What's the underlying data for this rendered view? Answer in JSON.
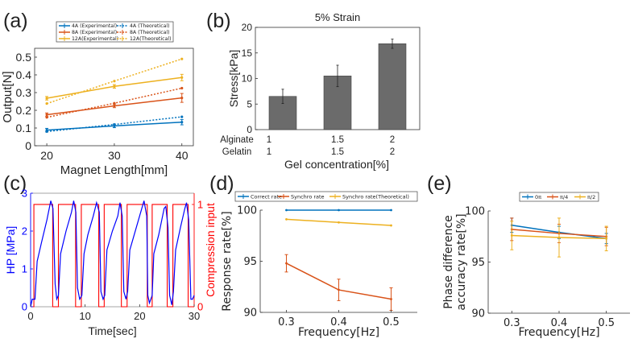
{
  "panel_labels": [
    "(a)",
    "(b)",
    "(c)",
    "(d)",
    "(e)"
  ],
  "chart_data": [
    {
      "id": "a",
      "type": "line",
      "xlabel": "Magnet Length[mm]",
      "ylabel": "Output[N]",
      "x": [
        20,
        30,
        40
      ],
      "xlim": [
        18.2,
        41.7
      ],
      "ylim": [
        0,
        0.55
      ],
      "xticks": [
        20,
        30,
        40
      ],
      "yticks": [
        0,
        0.1,
        0.2,
        0.3,
        0.4,
        0.5
      ],
      "grid": false,
      "legend": "top",
      "series": [
        {
          "name": "4A  (Experimental)",
          "color": "#0072BD",
          "dash": false,
          "values": [
            0.088,
            0.112,
            0.133
          ],
          "err": [
            0.01,
            0.01,
            0.015
          ]
        },
        {
          "name": "4A  (Theoretical)",
          "color": "#0072BD",
          "dash": true,
          "values": [
            0.08,
            0.12,
            0.163
          ],
          "err": [
            0,
            0,
            0
          ]
        },
        {
          "name": "8A  (Experimental)",
          "color": "#D95319",
          "dash": false,
          "values": [
            0.175,
            0.225,
            0.27
          ],
          "err": [
            0.01,
            0.01,
            0.025
          ]
        },
        {
          "name": "8A  (Theoretical)",
          "color": "#D95319",
          "dash": true,
          "values": [
            0.16,
            0.24,
            0.325
          ],
          "err": [
            0,
            0,
            0
          ]
        },
        {
          "name": "12A(Experimental)",
          "color": "#EDB120",
          "dash": false,
          "values": [
            0.268,
            0.335,
            0.385
          ],
          "err": [
            0.01,
            0.01,
            0.018
          ]
        },
        {
          "name": "12A(Theoretical)",
          "color": "#EDB120",
          "dash": true,
          "values": [
            0.238,
            0.365,
            0.49
          ],
          "err": [
            0,
            0,
            0
          ]
        }
      ]
    },
    {
      "id": "b",
      "type": "bar",
      "title": "5% Strain",
      "xlabel": "Gel concentration[%]",
      "ylabel": "Stress[kPa]",
      "ylim": [
        0,
        20
      ],
      "yticks": [
        0,
        5,
        10,
        15,
        20
      ],
      "category_rows": [
        {
          "name": "Alginate",
          "values": [
            "1",
            "1.5",
            "2"
          ]
        },
        {
          "name": "Gelatin",
          "values": [
            "1",
            "1.5",
            "2"
          ]
        }
      ],
      "values": [
        6.5,
        10.5,
        16.8
      ],
      "err": [
        1.4,
        2.1,
        0.9
      ],
      "color": "#6b6b6b"
    },
    {
      "id": "c",
      "type": "line",
      "xlabel": "Time[sec]",
      "ylabel": "HP [MPa]",
      "ylabel_right": "Compression input",
      "xlim": [
        0,
        30
      ],
      "ylim": [
        0,
        3
      ],
      "ylim_right": [
        0,
        1.11
      ],
      "xticks": [
        0,
        10,
        20,
        30
      ],
      "yticks": [
        0,
        1,
        2,
        3
      ],
      "yticks_right": [
        0,
        1
      ],
      "color_left": "#0000FF",
      "color_right": "#FF0000",
      "hp_series": [
        [
          0,
          0
        ],
        [
          0.3,
          0.2
        ],
        [
          0.8,
          0.2
        ],
        [
          1.2,
          1.2
        ],
        [
          2,
          1.7
        ],
        [
          3,
          2.3
        ],
        [
          3.7,
          2.8
        ],
        [
          4.1,
          2.6
        ],
        [
          4.5,
          0.6
        ],
        [
          4.8,
          0.2
        ],
        [
          5.1,
          0.3
        ],
        [
          5.5,
          1.4
        ],
        [
          6.5,
          2
        ],
        [
          7.5,
          2.5
        ],
        [
          7.9,
          2.8
        ],
        [
          8.3,
          2.5
        ],
        [
          8.6,
          0.5
        ],
        [
          9,
          0.2
        ],
        [
          9.4,
          0.3
        ],
        [
          9.8,
          1.4
        ],
        [
          10.5,
          1.9
        ],
        [
          11.5,
          2.4
        ],
        [
          12.1,
          2.75
        ],
        [
          12.6,
          2.5
        ],
        [
          12.9,
          0.4
        ],
        [
          13.3,
          0.2
        ],
        [
          13.6,
          0.3
        ],
        [
          14,
          1.5
        ],
        [
          15,
          2
        ],
        [
          16,
          2.4
        ],
        [
          16.4,
          2.75
        ],
        [
          16.8,
          2.4
        ],
        [
          17.1,
          0.4
        ],
        [
          17.5,
          0.2
        ],
        [
          17.8,
          0.4
        ],
        [
          18.2,
          1.5
        ],
        [
          19,
          1.9
        ],
        [
          20,
          2.4
        ],
        [
          20.8,
          2.8
        ],
        [
          21.3,
          2.4
        ],
        [
          21.5,
          0.3
        ],
        [
          21.8,
          0.1
        ],
        [
          22.3,
          0.3
        ],
        [
          22.6,
          1.4
        ],
        [
          23.5,
          1.9
        ],
        [
          24.5,
          2.6
        ],
        [
          24.8,
          2.65
        ],
        [
          25.2,
          2.1
        ],
        [
          25.5,
          0.3
        ],
        [
          25.9,
          0.05
        ],
        [
          26.2,
          0.4
        ],
        [
          26.6,
          1.5
        ],
        [
          27.5,
          2.1
        ],
        [
          28.3,
          2.6
        ],
        [
          28.6,
          2.75
        ],
        [
          29,
          2.3
        ],
        [
          29.4,
          0.2
        ],
        [
          29.7,
          0.2
        ],
        [
          30,
          0.3
        ]
      ],
      "compression_on_intervals": [
        [
          0.6,
          4.05
        ],
        [
          5.1,
          8.25
        ],
        [
          9.3,
          12.5
        ],
        [
          13.5,
          16.65
        ],
        [
          17.7,
          21.4
        ],
        [
          22.3,
          25.06
        ],
        [
          26.1,
          28.9
        ]
      ]
    },
    {
      "id": "d",
      "type": "line",
      "xlabel": "Frequency[Hz]",
      "ylabel": "Response rate[%]",
      "x": [
        0.3,
        0.4,
        0.5
      ],
      "xlim": [
        0.25,
        0.55
      ],
      "ylim": [
        90,
        100
      ],
      "xticks": [
        0.3,
        0.4,
        0.5
      ],
      "yticks": [
        90,
        95,
        100
      ],
      "legend": "top",
      "series": [
        {
          "name": "Correct rate",
          "color": "#0072BD",
          "values": [
            100,
            100,
            100
          ],
          "err": [
            0,
            0,
            0
          ]
        },
        {
          "name": "Synchro rate",
          "color": "#D95319",
          "values": [
            94.8,
            92.2,
            91.3
          ],
          "err": [
            0.85,
            1.05,
            1.1
          ]
        },
        {
          "name": "Synchro rate(Theoretical)",
          "color": "#EDB120",
          "values": [
            99.1,
            98.8,
            98.5
          ],
          "err": [
            0,
            0,
            0
          ]
        }
      ]
    },
    {
      "id": "e",
      "type": "line",
      "xlabel": "Frequency[Hz]",
      "ylabel": "Phase difference",
      "ylabel2": "accuracy rate[%]",
      "x": [
        0.3,
        0.4,
        0.5
      ],
      "xlim": [
        0.25,
        0.55
      ],
      "ylim": [
        90,
        100
      ],
      "xticks": [
        0.3,
        0.4,
        0.5
      ],
      "yticks": [
        90,
        95,
        100
      ],
      "legend": "top",
      "series": [
        {
          "name": "0π",
          "color": "#0072BD",
          "values": [
            98.6,
            97.9,
            97.3
          ],
          "err": [
            0.7,
            0.6,
            0.5
          ]
        },
        {
          "name": "π/4",
          "color": "#D95319",
          "values": [
            98.2,
            97.8,
            97.5
          ],
          "err": [
            1.1,
            0.9,
            0.9
          ]
        },
        {
          "name": "π/2",
          "color": "#EDB120",
          "values": [
            97.6,
            97.4,
            97.3
          ],
          "err": [
            1.4,
            1.9,
            1.2
          ]
        }
      ]
    }
  ]
}
